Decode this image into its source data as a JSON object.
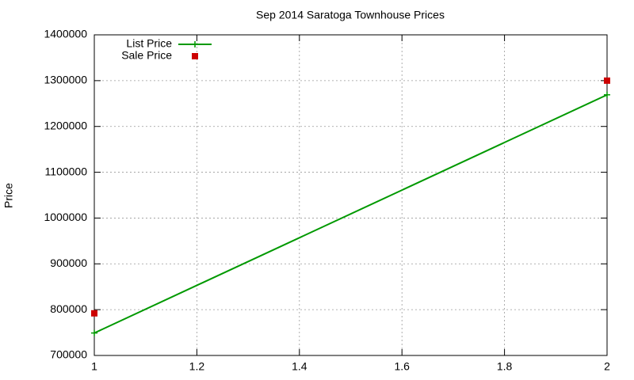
{
  "chart_data": {
    "type": "line",
    "title": "Sep 2014 Saratoga Townhouse Prices",
    "ylabel": "Price",
    "x": [
      1,
      2
    ],
    "series": [
      {
        "name": "List Price",
        "color": "#009900",
        "mode": "linespoints",
        "values": [
          749000,
          1269000
        ]
      },
      {
        "name": "Sale Price",
        "color": "#cc0000",
        "mode": "points",
        "values": [
          792000,
          1300000
        ]
      }
    ],
    "xlim": [
      1,
      2
    ],
    "xticks": [
      1,
      1.2,
      1.4,
      1.6,
      1.8,
      2
    ],
    "ylim": [
      700000,
      1400000
    ],
    "yticks": [
      700000,
      800000,
      900000,
      1000000,
      1100000,
      1200000,
      1300000,
      1400000
    ],
    "grid": true,
    "legend": "top-left"
  }
}
